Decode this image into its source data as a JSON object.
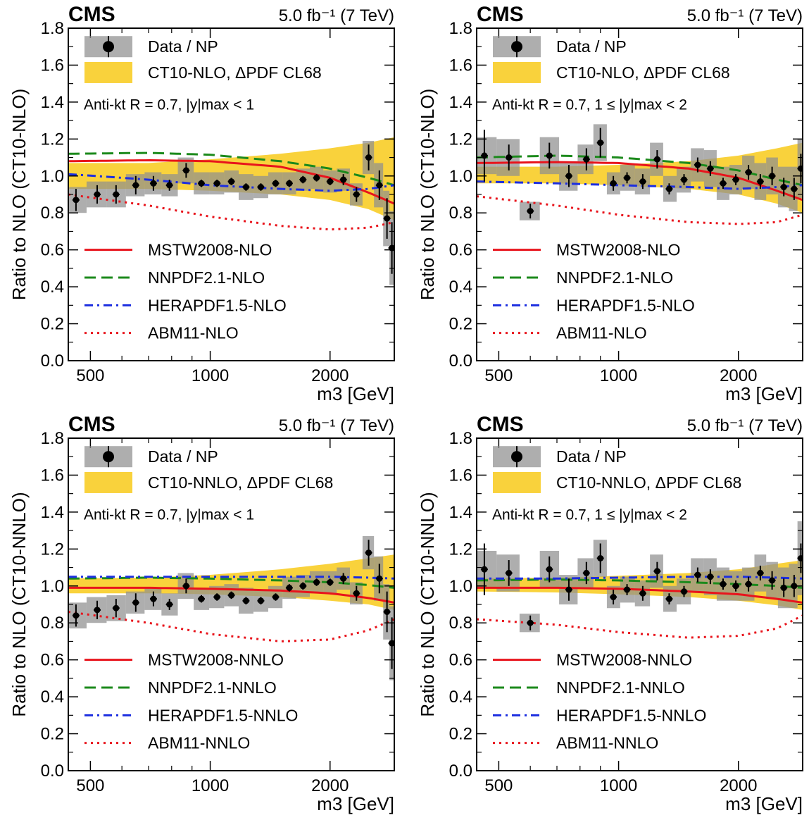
{
  "chart_data": [
    {
      "type": "line",
      "experiment": "CMS",
      "luminosity": "5.0 fb⁻¹ (7 TeV)",
      "xlabel": "m3 [GeV]",
      "ylabel": "Ratio to NLO (CT10-NLO)",
      "xscale": "log",
      "xlim": [
        440,
        2900
      ],
      "ylim": [
        0,
        1.8
      ],
      "xticks": [
        500,
        1000,
        2000
      ],
      "yticks": [
        0.0,
        0.2,
        0.4,
        0.6,
        0.8,
        1.0,
        1.2,
        1.4,
        1.6,
        1.8
      ],
      "annotation": "Anti-kt R = 0.7, |y|max < 1",
      "legend_top": [
        "Data / NP",
        "CT10-NLO, ΔPDF CL68"
      ],
      "legend_bottom": [
        "MSTW2008-NLO",
        "NNPDF2.1-NLO",
        "HERAPDF1.5-NLO",
        "ABM11-NLO"
      ],
      "data": {
        "x": [
          460,
          520,
          580,
          650,
          720,
          790,
          870,
          950,
          1040,
          1130,
          1230,
          1340,
          1460,
          1580,
          1710,
          1850,
          2000,
          2160,
          2330,
          2500,
          2660,
          2780,
          2860
        ],
        "y": [
          0.87,
          0.9,
          0.9,
          0.95,
          0.96,
          0.95,
          1.03,
          0.96,
          0.96,
          0.97,
          0.94,
          0.94,
          0.96,
          0.96,
          0.98,
          0.99,
          0.97,
          0.98,
          0.9,
          1.1,
          0.95,
          0.77,
          0.61
        ],
        "stat": [
          0.06,
          0.05,
          0.05,
          0.05,
          0.04,
          0.03,
          0.04,
          0.02,
          0.02,
          0.02,
          0.02,
          0.02,
          0.02,
          0.02,
          0.02,
          0.02,
          0.02,
          0.03,
          0.04,
          0.07,
          0.08,
          0.11,
          0.14
        ],
        "syst": [
          0.07,
          0.07,
          0.07,
          0.06,
          0.06,
          0.06,
          0.07,
          0.06,
          0.06,
          0.06,
          0.07,
          0.06,
          0.06,
          0.06,
          0.06,
          0.06,
          0.06,
          0.06,
          0.06,
          0.09,
          0.12,
          0.15,
          0.2
        ]
      },
      "pdf_band": {
        "x": [
          440,
          700,
          1000,
          1500,
          2000,
          2500,
          2900
        ],
        "lo": [
          0.93,
          0.93,
          0.92,
          0.9,
          0.87,
          0.82,
          0.76
        ],
        "hi": [
          1.07,
          1.07,
          1.09,
          1.12,
          1.15,
          1.18,
          1.21
        ]
      },
      "series": [
        {
          "name": "MSTW2008-NLO",
          "style": "solid",
          "color": "#e8141c",
          "x": [
            440,
            700,
            1000,
            1500,
            2000,
            2500,
            2900
          ],
          "y": [
            1.08,
            1.085,
            1.08,
            1.05,
            0.99,
            0.91,
            0.85
          ]
        },
        {
          "name": "NNPDF2.1-NLO",
          "style": "dashed",
          "color": "#1c8a1c",
          "x": [
            440,
            700,
            1000,
            1500,
            2000,
            2500,
            2900
          ],
          "y": [
            1.12,
            1.125,
            1.115,
            1.08,
            1.04,
            0.99,
            0.95
          ]
        },
        {
          "name": "HERAPDF1.5-NLO",
          "style": "dashdot",
          "color": "#1c2ee0",
          "x": [
            440,
            700,
            1000,
            1500,
            2000,
            2500,
            2900
          ],
          "y": [
            1.01,
            0.98,
            0.95,
            0.93,
            0.92,
            0.93,
            0.95
          ]
        },
        {
          "name": "ABM11-NLO",
          "style": "dotted",
          "color": "#e8141c",
          "x": [
            440,
            700,
            1000,
            1500,
            2000,
            2500,
            2900
          ],
          "y": [
            0.9,
            0.84,
            0.78,
            0.73,
            0.71,
            0.72,
            0.75
          ]
        }
      ]
    },
    {
      "type": "line",
      "experiment": "CMS",
      "luminosity": "5.0 fb⁻¹ (7 TeV)",
      "xlabel": "m3 [GeV]",
      "ylabel": "Ratio to NLO (CT10-NLO)",
      "xscale": "log",
      "xlim": [
        440,
        2900
      ],
      "ylim": [
        0,
        1.8
      ],
      "xticks": [
        500,
        1000,
        2000
      ],
      "yticks": [
        0.0,
        0.2,
        0.4,
        0.6,
        0.8,
        1.0,
        1.2,
        1.4,
        1.6,
        1.8
      ],
      "annotation": "Anti-kt R = 0.7, 1 ≤ |y|max < 2",
      "legend_top": [
        "Data / NP",
        "CT10-NLO, ΔPDF CL68"
      ],
      "legend_bottom": [
        "MSTW2008-NLO",
        "NNPDF2.1-NLO",
        "HERAPDF1.5-NLO",
        "ABM11-NLO"
      ],
      "data": {
        "x": [
          460,
          530,
          600,
          670,
          750,
          830,
          900,
          970,
          1050,
          1150,
          1250,
          1340,
          1460,
          1580,
          1700,
          1830,
          1970,
          2120,
          2270,
          2430,
          2600,
          2760,
          2870
        ],
        "y": [
          1.11,
          1.1,
          0.81,
          1.11,
          1.0,
          1.09,
          1.18,
          0.96,
          0.99,
          0.97,
          1.09,
          0.93,
          0.98,
          1.06,
          1.04,
          0.96,
          0.98,
          1.02,
          0.97,
          1.0,
          0.94,
          0.93,
          1.04
        ],
        "stat": [
          0.14,
          0.07,
          0.04,
          0.07,
          0.06,
          0.06,
          0.08,
          0.04,
          0.03,
          0.04,
          0.05,
          0.03,
          0.03,
          0.04,
          0.04,
          0.03,
          0.03,
          0.04,
          0.04,
          0.05,
          0.05,
          0.06,
          0.08
        ],
        "syst": [
          0.1,
          0.1,
          0.05,
          0.1,
          0.08,
          0.08,
          0.1,
          0.06,
          0.07,
          0.07,
          0.09,
          0.07,
          0.07,
          0.09,
          0.1,
          0.09,
          0.08,
          0.09,
          0.1,
          0.1,
          0.11,
          0.12,
          0.16
        ]
      },
      "pdf_band": {
        "x": [
          440,
          700,
          1000,
          1500,
          2000,
          2500,
          2900
        ],
        "lo": [
          0.96,
          0.96,
          0.95,
          0.93,
          0.9,
          0.85,
          0.8
        ],
        "hi": [
          1.05,
          1.05,
          1.06,
          1.08,
          1.11,
          1.15,
          1.18
        ]
      },
      "series": [
        {
          "name": "MSTW2008-NLO",
          "style": "solid",
          "color": "#e8141c",
          "x": [
            440,
            700,
            1000,
            1500,
            2000,
            2500,
            2900
          ],
          "y": [
            1.07,
            1.075,
            1.07,
            1.04,
            0.99,
            0.92,
            0.87
          ]
        },
        {
          "name": "NNPDF2.1-NLO",
          "style": "dashed",
          "color": "#1c8a1c",
          "x": [
            440,
            700,
            1000,
            1500,
            2000,
            2500,
            2900
          ],
          "y": [
            1.1,
            1.11,
            1.1,
            1.07,
            1.03,
            0.98,
            0.95
          ]
        },
        {
          "name": "HERAPDF1.5-NLO",
          "style": "dashdot",
          "color": "#1c2ee0",
          "x": [
            440,
            700,
            1000,
            1500,
            2000,
            2500,
            2900
          ],
          "y": [
            0.97,
            0.96,
            0.95,
            0.94,
            0.93,
            0.94,
            0.95
          ]
        },
        {
          "name": "ABM11-NLO",
          "style": "dotted",
          "color": "#e8141c",
          "x": [
            440,
            700,
            1000,
            1500,
            2000,
            2500,
            2900
          ],
          "y": [
            0.89,
            0.84,
            0.79,
            0.75,
            0.74,
            0.75,
            0.79
          ]
        }
      ]
    },
    {
      "type": "line",
      "experiment": "CMS",
      "luminosity": "5.0 fb⁻¹ (7 TeV)",
      "xlabel": "m3 [GeV]",
      "ylabel": "Ratio to NLO (CT10-NNLO)",
      "xscale": "log",
      "xlim": [
        440,
        2900
      ],
      "ylim": [
        0,
        1.8
      ],
      "xticks": [
        500,
        1000,
        2000
      ],
      "yticks": [
        0.0,
        0.2,
        0.4,
        0.6,
        0.8,
        1.0,
        1.2,
        1.4,
        1.6,
        1.8
      ],
      "annotation": "Anti-kt R = 0.7, |y|max < 1",
      "legend_top": [
        "Data / NP",
        "CT10-NNLO, ΔPDF CL68"
      ],
      "legend_bottom": [
        "MSTW2008-NNLO",
        "NNPDF2.1-NNLO",
        "HERAPDF1.5-NNLO",
        "ABM11-NNLO"
      ],
      "data": {
        "x": [
          460,
          520,
          580,
          650,
          720,
          790,
          870,
          950,
          1040,
          1130,
          1230,
          1340,
          1460,
          1580,
          1710,
          1850,
          2000,
          2160,
          2330,
          2500,
          2660,
          2780,
          2860
        ],
        "y": [
          0.84,
          0.87,
          0.88,
          0.91,
          0.93,
          0.9,
          1.0,
          0.93,
          0.94,
          0.95,
          0.92,
          0.92,
          0.94,
          0.99,
          1.0,
          1.02,
          1.02,
          1.04,
          0.96,
          1.18,
          1.04,
          0.86,
          0.69
        ],
        "stat": [
          0.06,
          0.05,
          0.05,
          0.05,
          0.04,
          0.03,
          0.04,
          0.02,
          0.02,
          0.02,
          0.02,
          0.02,
          0.02,
          0.02,
          0.02,
          0.02,
          0.02,
          0.03,
          0.04,
          0.07,
          0.08,
          0.11,
          0.14
        ],
        "syst": [
          0.07,
          0.07,
          0.07,
          0.06,
          0.06,
          0.06,
          0.07,
          0.06,
          0.06,
          0.06,
          0.07,
          0.06,
          0.06,
          0.06,
          0.06,
          0.06,
          0.06,
          0.06,
          0.06,
          0.09,
          0.12,
          0.15,
          0.2
        ]
      },
      "pdf_band": {
        "x": [
          440,
          700,
          1000,
          1500,
          2000,
          2500,
          2900
        ],
        "lo": [
          0.96,
          0.96,
          0.955,
          0.94,
          0.92,
          0.9,
          0.87
        ],
        "hi": [
          1.04,
          1.045,
          1.06,
          1.09,
          1.12,
          1.15,
          1.17
        ]
      },
      "series": [
        {
          "name": "MSTW2008-NNLO",
          "style": "solid",
          "color": "#e8141c",
          "x": [
            440,
            700,
            1000,
            1500,
            2000,
            2500,
            2900
          ],
          "y": [
            0.99,
            0.99,
            0.985,
            0.975,
            0.96,
            0.935,
            0.91
          ]
        },
        {
          "name": "NNPDF2.1-NNLO",
          "style": "dashed",
          "color": "#1c8a1c",
          "x": [
            440,
            700,
            1000,
            1500,
            2000,
            2500,
            2900
          ],
          "y": [
            1.04,
            1.045,
            1.04,
            1.03,
            1.02,
            1.005,
            0.99
          ]
        },
        {
          "name": "HERAPDF1.5-NNLO",
          "style": "dashdot",
          "color": "#1c2ee0",
          "x": [
            440,
            700,
            1000,
            1500,
            2000,
            2500,
            2900
          ],
          "y": [
            1.05,
            1.05,
            1.05,
            1.05,
            1.05,
            1.045,
            1.04
          ]
        },
        {
          "name": "ABM11-NNLO",
          "style": "dotted",
          "color": "#e8141c",
          "x": [
            440,
            700,
            1000,
            1500,
            2000,
            2500,
            2900
          ],
          "y": [
            0.86,
            0.8,
            0.74,
            0.7,
            0.71,
            0.76,
            0.82
          ]
        }
      ]
    },
    {
      "type": "line",
      "experiment": "CMS",
      "luminosity": "5.0 fb⁻¹ (7 TeV)",
      "xlabel": "m3 [GeV]",
      "ylabel": "Ratio to NLO (CT10-NNLO)",
      "xscale": "log",
      "xlim": [
        440,
        2900
      ],
      "ylim": [
        0,
        1.8
      ],
      "xticks": [
        500,
        1000,
        2000
      ],
      "yticks": [
        0.0,
        0.2,
        0.4,
        0.6,
        0.8,
        1.0,
        1.2,
        1.4,
        1.6,
        1.8
      ],
      "annotation": "Anti-kt R = 0.7, 1 ≤ |y|max < 2",
      "legend_top": [
        "Data / NP",
        "CT10-NNLO, ΔPDF CL68"
      ],
      "legend_bottom": [
        "MSTW2008-NNLO",
        "NNPDF2.1-NNLO",
        "HERAPDF1.5-NNLO",
        "ABM11-NNLO"
      ],
      "data": {
        "x": [
          460,
          530,
          600,
          670,
          750,
          830,
          900,
          970,
          1050,
          1150,
          1250,
          1340,
          1460,
          1580,
          1700,
          1830,
          1970,
          2120,
          2270,
          2430,
          2600,
          2760,
          2870
        ],
        "y": [
          1.09,
          1.07,
          0.8,
          1.09,
          0.98,
          1.07,
          1.15,
          0.94,
          0.98,
          0.96,
          1.08,
          0.93,
          0.97,
          1.06,
          1.05,
          1.01,
          1.0,
          1.01,
          1.07,
          1.03,
          0.99,
          1.0,
          1.15
        ],
        "stat": [
          0.14,
          0.07,
          0.04,
          0.07,
          0.06,
          0.06,
          0.08,
          0.04,
          0.03,
          0.04,
          0.05,
          0.03,
          0.03,
          0.04,
          0.04,
          0.03,
          0.03,
          0.04,
          0.04,
          0.05,
          0.05,
          0.06,
          0.08
        ],
        "syst": [
          0.1,
          0.1,
          0.05,
          0.1,
          0.08,
          0.08,
          0.1,
          0.06,
          0.07,
          0.07,
          0.09,
          0.07,
          0.07,
          0.09,
          0.1,
          0.09,
          0.08,
          0.09,
          0.1,
          0.1,
          0.11,
          0.12,
          0.2
        ]
      },
      "pdf_band": {
        "x": [
          440,
          700,
          1000,
          1500,
          2000,
          2500,
          2900
        ],
        "lo": [
          0.97,
          0.965,
          0.955,
          0.94,
          0.92,
          0.895,
          0.87
        ],
        "hi": [
          1.04,
          1.045,
          1.055,
          1.07,
          1.09,
          1.12,
          1.14
        ]
      },
      "series": [
        {
          "name": "MSTW2008-NNLO",
          "style": "solid",
          "color": "#e8141c",
          "x": [
            440,
            700,
            1000,
            1500,
            2000,
            2500,
            2900
          ],
          "y": [
            0.99,
            0.99,
            0.985,
            0.97,
            0.955,
            0.93,
            0.91
          ]
        },
        {
          "name": "NNPDF2.1-NNLO",
          "style": "dashed",
          "color": "#1c8a1c",
          "x": [
            440,
            700,
            1000,
            1500,
            2000,
            2500,
            2900
          ],
          "y": [
            1.03,
            1.035,
            1.03,
            1.02,
            1.01,
            1.0,
            0.99
          ]
        },
        {
          "name": "HERAPDF1.5-NNLO",
          "style": "dashdot",
          "color": "#1c2ee0",
          "x": [
            440,
            700,
            1000,
            1500,
            2000,
            2500,
            2900
          ],
          "y": [
            1.04,
            1.04,
            1.045,
            1.05,
            1.05,
            1.045,
            1.04
          ]
        },
        {
          "name": "ABM11-NNLO",
          "style": "dotted",
          "color": "#e8141c",
          "x": [
            440,
            700,
            1000,
            1500,
            2000,
            2500,
            2900
          ],
          "y": [
            0.82,
            0.79,
            0.75,
            0.72,
            0.73,
            0.77,
            0.84
          ]
        }
      ]
    }
  ]
}
